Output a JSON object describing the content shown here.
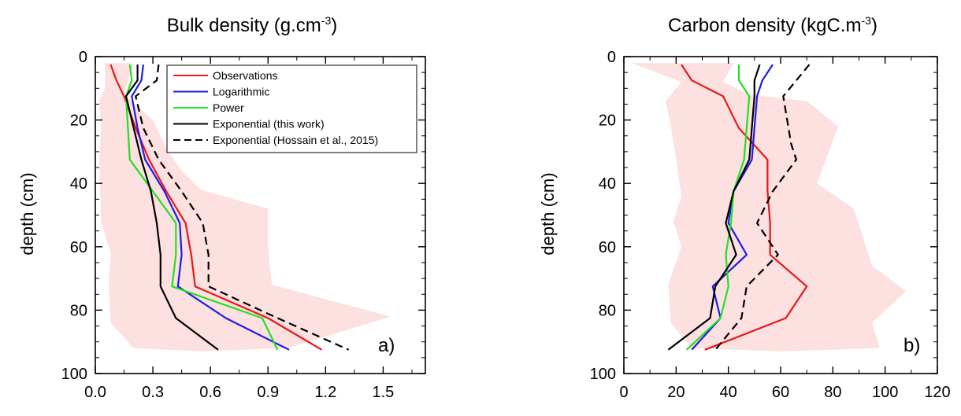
{
  "chart_data": [
    {
      "type": "line",
      "title": "Bulk density (g.cm",
      "title_sup": "-3",
      "title_suffix": ")",
      "xlabel": "",
      "ylabel": "depth (cm)",
      "xlim": [
        0,
        1.72
      ],
      "ylim": [
        100,
        0
      ],
      "xticks": [
        "0.0",
        "0.3",
        "0.6",
        "0.9",
        "1.2",
        "1.5"
      ],
      "xtick_values": [
        0,
        0.3,
        0.6,
        0.9,
        1.2,
        1.5
      ],
      "yticks": [
        "0",
        "20",
        "40",
        "60",
        "80",
        "100"
      ],
      "ytick_values": [
        0,
        20,
        40,
        60,
        80,
        100
      ],
      "panel_label": "a)",
      "band": {
        "color": "#fde0e0",
        "left": [
          [
            0.05,
            2
          ],
          [
            0.05,
            10
          ],
          [
            0.02,
            14
          ],
          [
            0.03,
            22
          ],
          [
            0.02,
            33
          ],
          [
            0.03,
            52
          ],
          [
            0.08,
            62
          ],
          [
            0.07,
            72
          ],
          [
            0.08,
            84
          ],
          [
            0.2,
            92
          ],
          [
            0.55,
            93
          ]
        ],
        "right": [
          [
            0.55,
            93
          ],
          [
            1.0,
            92
          ],
          [
            1.54,
            82
          ],
          [
            0.92,
            72
          ],
          [
            0.9,
            60
          ],
          [
            0.9,
            48
          ],
          [
            0.55,
            42
          ],
          [
            0.45,
            36
          ],
          [
            0.38,
            30
          ],
          [
            0.3,
            20
          ],
          [
            0.15,
            12
          ],
          [
            0.2,
            2
          ]
        ]
      },
      "series": [
        {
          "name": "Observations",
          "color": "#e81818",
          "dash": "none",
          "x": [
            0.08,
            0.11,
            0.15,
            0.21,
            0.28,
            0.37,
            0.47,
            0.5,
            0.5,
            0.52,
            0.9,
            1.18
          ],
          "y": [
            2.5,
            7.5,
            12.5,
            22.5,
            32.5,
            42.5,
            52.5,
            62.5,
            62.5,
            72.5,
            82.5,
            92.5
          ]
        },
        {
          "name": "Logarithmic",
          "color": "#1c1ce8",
          "dash": "none",
          "x": [
            0.25,
            0.24,
            0.19,
            0.22,
            0.26,
            0.36,
            0.44,
            0.45,
            0.43,
            0.68,
            1.01
          ],
          "y": [
            2.5,
            7.5,
            12.5,
            22.5,
            32.5,
            42.5,
            52.5,
            62.5,
            72.5,
            82.5,
            92.5
          ]
        },
        {
          "name": "Power",
          "color": "#22e022",
          "dash": "none",
          "x": [
            0.18,
            0.19,
            0.16,
            0.17,
            0.18,
            0.3,
            0.42,
            0.42,
            0.4,
            0.87,
            0.95
          ],
          "y": [
            2.5,
            7.5,
            12.5,
            22.5,
            32.5,
            42.5,
            52.5,
            62.5,
            72.5,
            82.5,
            92.5
          ]
        },
        {
          "name": "Exponential (this work)",
          "color": "#000000",
          "dash": "none",
          "x": [
            0.22,
            0.22,
            0.16,
            0.2,
            0.24,
            0.29,
            0.32,
            0.34,
            0.34,
            0.42,
            0.64
          ],
          "y": [
            2.5,
            7.5,
            12.5,
            22.5,
            32.5,
            42.5,
            52.5,
            62.5,
            72.5,
            82.5,
            92.5
          ]
        },
        {
          "name": "Exponential (Hossain et al., 2015)",
          "color": "#000000",
          "dash": "10,6",
          "x": [
            0.33,
            0.32,
            0.21,
            0.25,
            0.33,
            0.45,
            0.56,
            0.59,
            0.59,
            0.59,
            0.95,
            1.32
          ],
          "y": [
            2.5,
            7.5,
            12.5,
            22.5,
            32.5,
            42.5,
            52.5,
            62.5,
            62.5,
            72.5,
            82.5,
            92.5
          ]
        }
      ],
      "legend": "top-right"
    },
    {
      "type": "line",
      "title": "Carbon density (kgC.m",
      "title_sup": "-3",
      "title_suffix": ")",
      "xlabel": "",
      "ylabel": "depth (cm)",
      "xlim": [
        0,
        120
      ],
      "ylim": [
        100,
        0
      ],
      "xticks": [
        "0",
        "20",
        "40",
        "60",
        "80",
        "100",
        "120"
      ],
      "xtick_values": [
        0,
        20,
        40,
        60,
        80,
        100,
        120
      ],
      "yticks": [
        "0",
        "20",
        "40",
        "60",
        "80",
        "100"
      ],
      "ytick_values": [
        0,
        20,
        40,
        60,
        80,
        100
      ],
      "panel_label": "b)",
      "band": {
        "color": "#fde0e0",
        "left": [
          [
            3,
            2
          ],
          [
            22,
            8
          ],
          [
            16,
            14
          ],
          [
            18,
            22
          ],
          [
            20,
            32
          ],
          [
            22,
            44
          ],
          [
            19,
            52
          ],
          [
            22,
            60
          ],
          [
            17,
            72
          ],
          [
            18,
            84
          ],
          [
            26,
            92
          ],
          [
            60,
            93
          ]
        ],
        "right": [
          [
            60,
            93
          ],
          [
            98,
            92
          ],
          [
            95,
            84
          ],
          [
            108,
            74
          ],
          [
            95,
            66
          ],
          [
            88,
            48
          ],
          [
            74,
            40
          ],
          [
            82,
            22
          ],
          [
            70,
            14
          ],
          [
            48,
            12
          ],
          [
            38,
            8
          ],
          [
            42,
            2
          ]
        ]
      },
      "series": [
        {
          "name": "Observations",
          "color": "#e81818",
          "dash": "none",
          "x": [
            22,
            26,
            38,
            44,
            55,
            55,
            56,
            56,
            70,
            62,
            31
          ],
          "y": [
            2.5,
            7.5,
            12.5,
            22.5,
            32.5,
            42.5,
            52.5,
            62.5,
            72.5,
            82.5,
            92.5
          ]
        },
        {
          "name": "Logarithmic",
          "color": "#1c1ce8",
          "dash": "none",
          "x": [
            57,
            53,
            51,
            50,
            49,
            42,
            40,
            47,
            34,
            37,
            26
          ],
          "y": [
            2.5,
            7.5,
            12.5,
            22.5,
            32.5,
            42.5,
            52.5,
            62.5,
            72.5,
            82.5,
            92.5
          ]
        },
        {
          "name": "Power",
          "color": "#22e022",
          "dash": "none",
          "x": [
            44,
            44,
            48,
            47,
            46,
            42,
            41,
            39,
            40,
            37,
            24
          ],
          "y": [
            2.5,
            7.5,
            12.5,
            22.5,
            32.5,
            42.5,
            52.5,
            62.5,
            72.5,
            82.5,
            92.5
          ]
        },
        {
          "name": "Exponential (this work)",
          "color": "#000000",
          "dash": "none",
          "x": [
            52,
            50,
            50,
            49,
            48,
            42,
            39,
            43,
            35,
            33,
            17
          ],
          "y": [
            2.5,
            7.5,
            12.5,
            22.5,
            32.5,
            42.5,
            52.5,
            62.5,
            72.5,
            82.5,
            92.5
          ]
        },
        {
          "name": "Exponential (Hossain et al., 2015)",
          "color": "#000000",
          "dash": "10,6",
          "x": [
            71,
            66,
            61,
            63,
            64,
            66,
            57,
            51,
            59,
            47,
            45,
            35
          ],
          "y": [
            2.5,
            7.5,
            12.5,
            22.5,
            27.5,
            32.5,
            42.5,
            52.5,
            62.5,
            72.5,
            82.5,
            92.5
          ]
        }
      ]
    }
  ]
}
